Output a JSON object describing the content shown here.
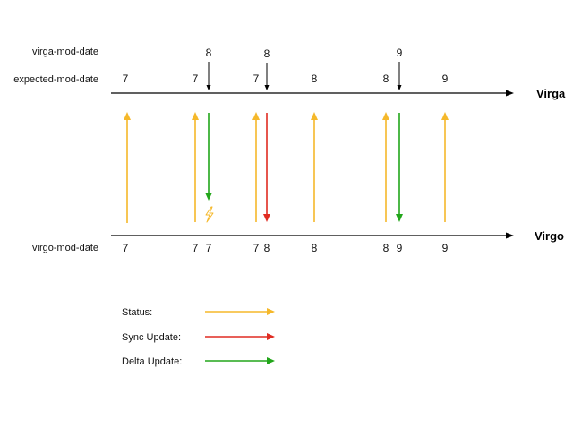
{
  "labels": {
    "virga_mod_date": "virga-mod-date",
    "expected_mod_date": "expected-mod-date",
    "virgo_mod_date": "virgo-mod-date",
    "virga": "Virga",
    "virgo": "Virgo"
  },
  "virga_marks": [
    "8",
    "8",
    "9"
  ],
  "expected_values": [
    "7",
    "7",
    "7",
    "8",
    "8",
    "9"
  ],
  "virgo_values": [
    "7",
    "7",
    "7",
    "7",
    "8",
    "8",
    "8",
    "9",
    "9"
  ],
  "bolt_icon": "lightning-bolt-icon",
  "arrows": [
    {
      "type": "status",
      "direction": "up"
    },
    {
      "type": "status",
      "direction": "up"
    },
    {
      "type": "delta",
      "direction": "down"
    },
    {
      "type": "status",
      "direction": "up"
    },
    {
      "type": "sync",
      "direction": "down"
    },
    {
      "type": "status",
      "direction": "up"
    },
    {
      "type": "status",
      "direction": "up"
    },
    {
      "type": "delta",
      "direction": "down"
    },
    {
      "type": "status",
      "direction": "up"
    }
  ],
  "legend": [
    {
      "label": "Status:",
      "type": "status"
    },
    {
      "label": "Sync Update:",
      "type": "sync"
    },
    {
      "label": "Delta Update:",
      "type": "delta"
    }
  ],
  "colors": {
    "status": "#F5B82A",
    "sync": "#E02C22",
    "delta": "#22A61A",
    "timeline": "#000000",
    "bolt": "#F5B82A"
  }
}
